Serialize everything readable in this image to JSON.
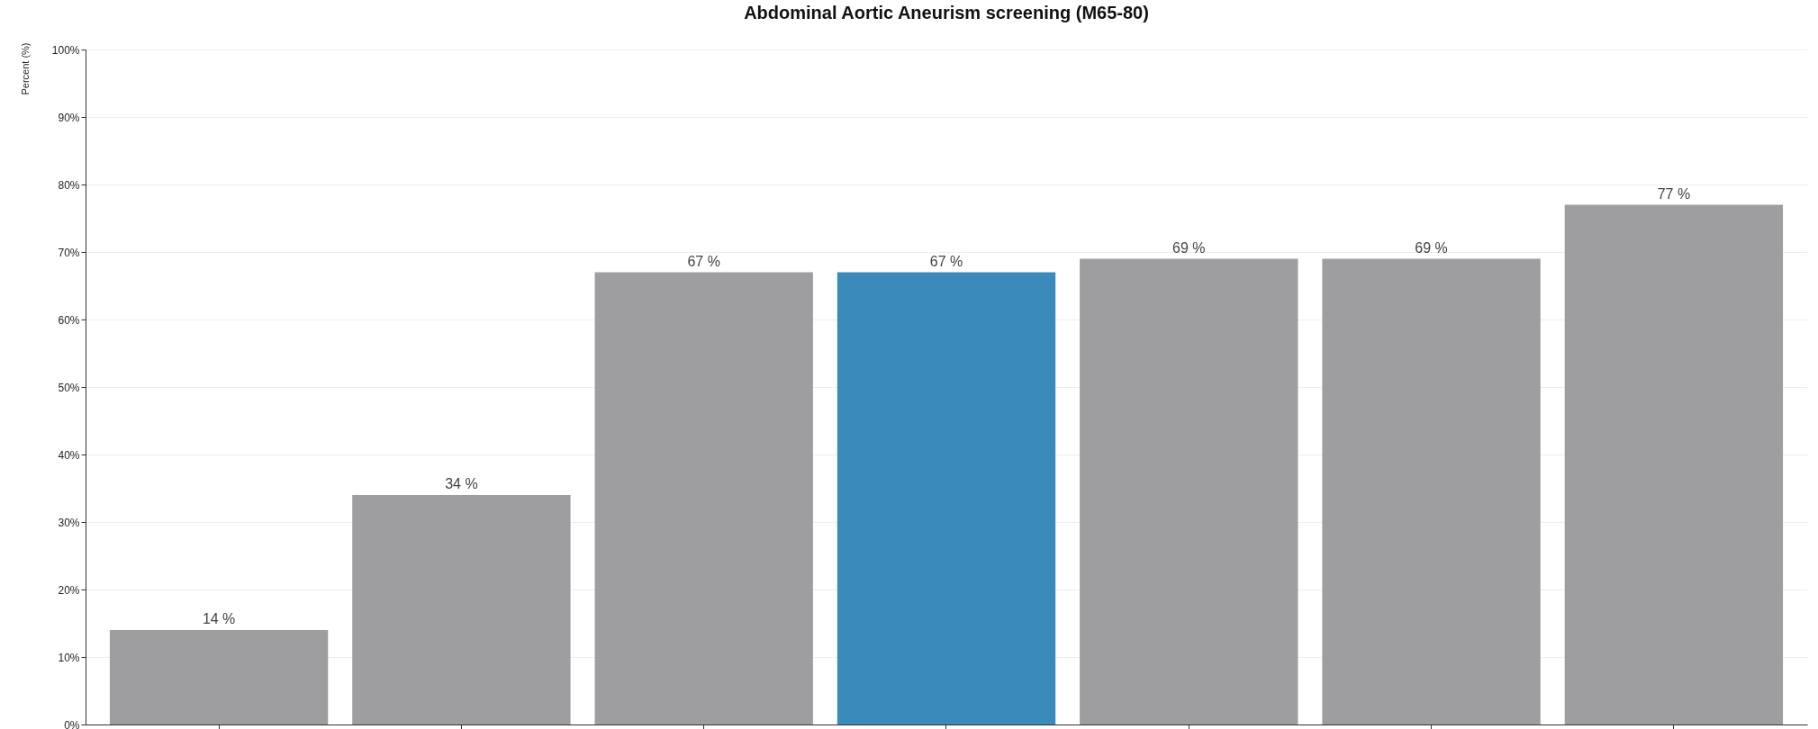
{
  "chart_data": {
    "type": "bar",
    "title": "Abdominal Aortic Aneurism screening (M65-80)",
    "ylabel": "Percent (%)",
    "categories": [
      null,
      null,
      null,
      null,
      null,
      null,
      null
    ],
    "values": [
      14,
      34,
      67,
      67,
      69,
      69,
      77
    ],
    "colors": [
      "#9e9ea0",
      "#9e9ea0",
      "#9e9ea0",
      "#3b8bba",
      "#9e9ea0",
      "#9e9ea0",
      "#9e9ea0"
    ],
    "value_labels": [
      "14 %",
      "34 %",
      "67 %",
      "67 %",
      "69 %",
      "69 %",
      "77 %"
    ],
    "ylim": [
      0,
      100
    ],
    "yticks": [
      {
        "value": 0,
        "label": "0%"
      },
      {
        "value": 10,
        "label": "10%"
      },
      {
        "value": 20,
        "label": "20%"
      },
      {
        "value": 30,
        "label": "30%"
      },
      {
        "value": 40,
        "label": "40%"
      },
      {
        "value": 50,
        "label": "50%"
      },
      {
        "value": 60,
        "label": "60%"
      },
      {
        "value": 70,
        "label": "70%"
      },
      {
        "value": 80,
        "label": "80%"
      },
      {
        "value": 90,
        "label": "90%"
      },
      {
        "value": 100,
        "label": "100%"
      }
    ],
    "grid": "y",
    "tick_labels": "y",
    "legend": false
  }
}
